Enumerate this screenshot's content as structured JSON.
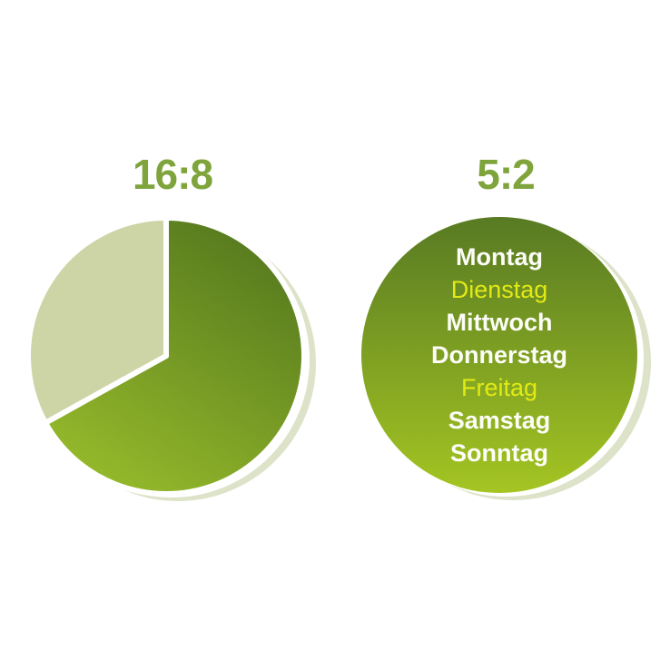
{
  "chart_data": [
    {
      "type": "pie",
      "title": "16:8",
      "start_angle_deg": 0,
      "direction": "clockwise",
      "legend_position": "none",
      "slices": [
        {
          "value": 16,
          "share_deg": 240,
          "color_gradient": [
            "#55781e",
            "#98bc2b"
          ]
        },
        {
          "value": 8,
          "share_deg": 120,
          "color": "#cdd4a5"
        }
      ]
    },
    {
      "type": "pie",
      "title": "5:2",
      "slices": [
        {
          "value": 7,
          "share_deg": 360,
          "color_gradient": [
            "#587a23",
            "#a4c522"
          ]
        }
      ],
      "labels_inside": [
        "Montag",
        "Dienstag",
        "Mittwoch",
        "Donnerstag",
        "Freitag",
        "Samstag",
        "Sonntag"
      ],
      "highlighted_labels": [
        "Dienstag",
        "Freitag"
      ]
    }
  ],
  "left_panel": {
    "title": "16:8",
    "title_color": "#7ea43b",
    "slice_dark_from": "#55781e",
    "slice_dark_to": "#98bc2b",
    "slice_light": "#cdd4a5",
    "shadow_color": "#dde3c9",
    "gap_color": "#ffffff"
  },
  "right_panel": {
    "title": "5:2",
    "title_color": "#7ea43b",
    "circle_from": "#587a23",
    "circle_to": "#a4c522",
    "shadow_color": "#dde3c9",
    "gap_color": "#ffffff",
    "days": [
      {
        "label": "Montag",
        "color": "#fdfdf7",
        "weight": "700"
      },
      {
        "label": "Dienstag",
        "color": "#e2ea15",
        "weight": "400"
      },
      {
        "label": "Mittwoch",
        "color": "#fdfdf7",
        "weight": "700"
      },
      {
        "label": "Donnerstag",
        "color": "#fdfdf7",
        "weight": "700"
      },
      {
        "label": "Freitag",
        "color": "#e2ea15",
        "weight": "400"
      },
      {
        "label": "Samstag",
        "color": "#fdfdf7",
        "weight": "700"
      },
      {
        "label": "Sonntag",
        "color": "#fdfdf7",
        "weight": "700"
      }
    ]
  }
}
